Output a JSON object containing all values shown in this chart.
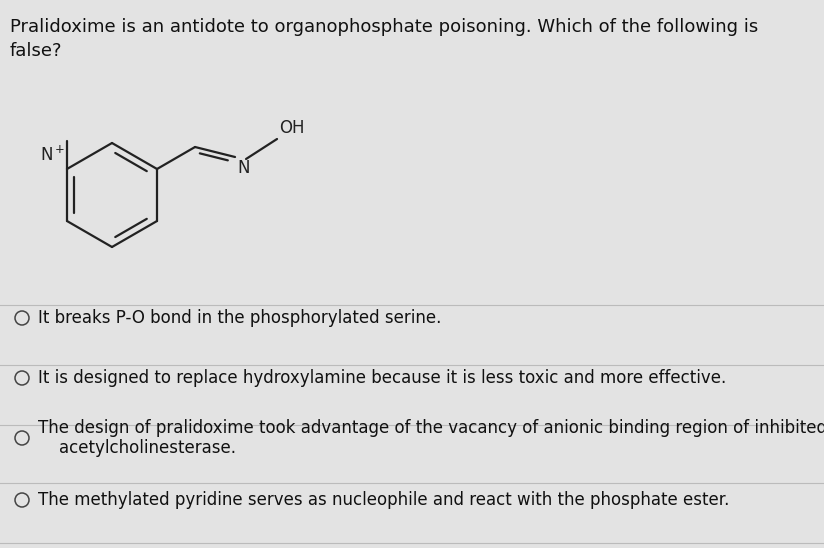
{
  "background_color": "#e3e3e3",
  "title_line1": "Pralidoxime is an antidote to organophosphate poisoning. Which of the following is",
  "title_line2": "false?",
  "title_fontsize": 13.0,
  "title_color": "#111111",
  "options": [
    "It breaks P-O bond in the phosphorylated serine.",
    "It is designed to replace hydroxylamine because it is less toxic and more effective.",
    "The design of pralidoxime took advantage of the vacancy of anionic binding region of inhibited\n    acetylcholinesterase.",
    "The methylated pyridine serves as nucleophile and react with the phosphate ester."
  ],
  "option_fontsize": 12.0,
  "option_color": "#111111",
  "circle_color": "#444444",
  "separator_color": "#bbbbbb",
  "mol_lw": 1.6,
  "mol_color": "#222222"
}
